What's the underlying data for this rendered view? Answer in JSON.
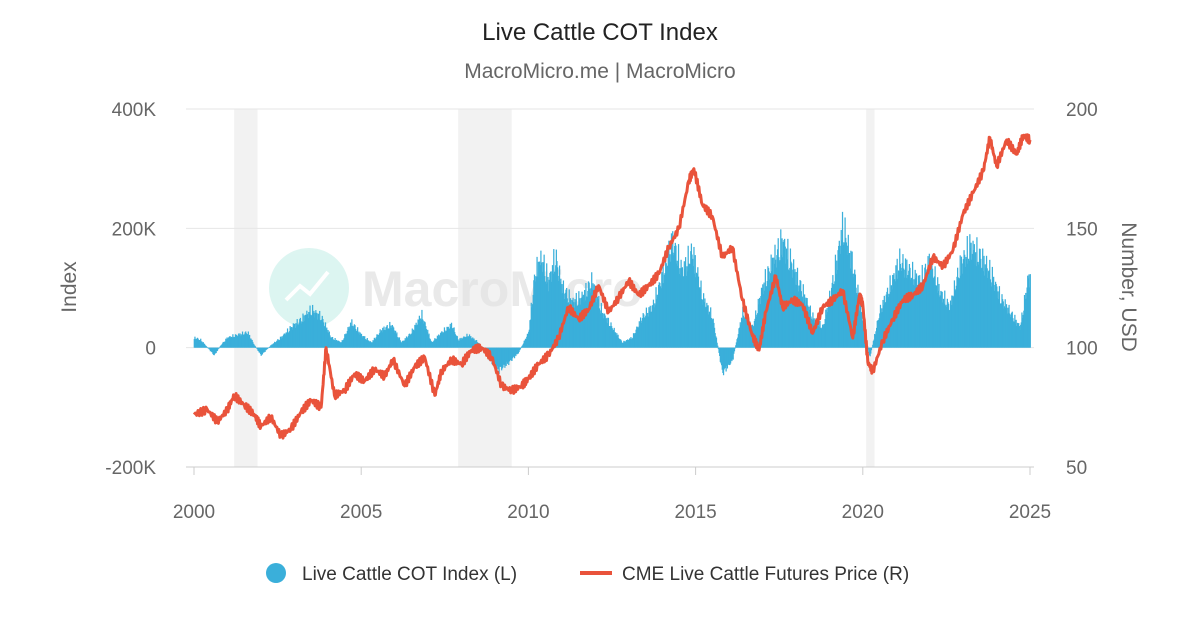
{
  "chart_data": {
    "type": "bar+line",
    "title": "Live Cattle COT Index",
    "subtitle": "MacroMicro.me | MacroMicro",
    "watermark": "MacroMicro",
    "y_left": {
      "label": "Index",
      "ticks": [
        "400K",
        "200K",
        "0",
        "-200K"
      ],
      "range": [
        -200000,
        400000
      ]
    },
    "y_right": {
      "label": "Number, USD",
      "ticks": [
        "200",
        "150",
        "100",
        "50"
      ],
      "range": [
        50,
        200
      ]
    },
    "x_axis": {
      "ticks": [
        "2000",
        "2005",
        "2010",
        "2015",
        "2020",
        "2025"
      ],
      "range": [
        2000.0,
        2025.0
      ]
    },
    "recession_shading": [
      [
        2001.2,
        2001.9
      ],
      [
        2007.9,
        2009.5
      ],
      [
        2020.1,
        2020.35
      ]
    ],
    "series": [
      {
        "name": "Live Cattle COT Index (L)",
        "type": "bar",
        "color": "#3aafda",
        "points": [
          [
            2000.0,
            20000
          ],
          [
            2000.2,
            15000
          ],
          [
            2000.4,
            0
          ],
          [
            2000.6,
            -15000
          ],
          [
            2000.8,
            5000
          ],
          [
            2001.0,
            20000
          ],
          [
            2001.3,
            25000
          ],
          [
            2001.6,
            30000
          ],
          [
            2001.8,
            5000
          ],
          [
            2002.0,
            -15000
          ],
          [
            2002.3,
            5000
          ],
          [
            2002.6,
            20000
          ],
          [
            2002.9,
            40000
          ],
          [
            2003.2,
            55000
          ],
          [
            2003.5,
            75000
          ],
          [
            2003.8,
            60000
          ],
          [
            2004.1,
            20000
          ],
          [
            2004.4,
            10000
          ],
          [
            2004.7,
            50000
          ],
          [
            2005.0,
            25000
          ],
          [
            2005.3,
            10000
          ],
          [
            2005.6,
            35000
          ],
          [
            2005.9,
            45000
          ],
          [
            2006.2,
            10000
          ],
          [
            2006.5,
            30000
          ],
          [
            2006.8,
            65000
          ],
          [
            2007.1,
            10000
          ],
          [
            2007.4,
            30000
          ],
          [
            2007.7,
            45000
          ],
          [
            2007.9,
            15000
          ],
          [
            2008.2,
            25000
          ],
          [
            2008.5,
            10000
          ],
          [
            2008.8,
            -20000
          ],
          [
            2009.1,
            -45000
          ],
          [
            2009.4,
            -30000
          ],
          [
            2009.7,
            -10000
          ],
          [
            2010.0,
            30000
          ],
          [
            2010.2,
            150000
          ],
          [
            2010.4,
            175000
          ],
          [
            2010.6,
            130000
          ],
          [
            2010.8,
            180000
          ],
          [
            2011.0,
            120000
          ],
          [
            2011.3,
            90000
          ],
          [
            2011.6,
            100000
          ],
          [
            2011.9,
            130000
          ],
          [
            2012.2,
            70000
          ],
          [
            2012.5,
            40000
          ],
          [
            2012.8,
            10000
          ],
          [
            2013.1,
            20000
          ],
          [
            2013.4,
            60000
          ],
          [
            2013.7,
            80000
          ],
          [
            2014.0,
            140000
          ],
          [
            2014.3,
            210000
          ],
          [
            2014.6,
            150000
          ],
          [
            2014.9,
            190000
          ],
          [
            2015.2,
            100000
          ],
          [
            2015.5,
            60000
          ],
          [
            2015.8,
            -50000
          ],
          [
            2016.1,
            -25000
          ],
          [
            2016.4,
            70000
          ],
          [
            2016.7,
            40000
          ],
          [
            2017.0,
            120000
          ],
          [
            2017.3,
            170000
          ],
          [
            2017.6,
            210000
          ],
          [
            2017.9,
            160000
          ],
          [
            2018.2,
            110000
          ],
          [
            2018.5,
            60000
          ],
          [
            2018.8,
            40000
          ],
          [
            2019.1,
            130000
          ],
          [
            2019.4,
            240000
          ],
          [
            2019.7,
            160000
          ],
          [
            2020.0,
            50000
          ],
          [
            2020.2,
            -20000
          ],
          [
            2020.5,
            70000
          ],
          [
            2020.8,
            120000
          ],
          [
            2021.1,
            170000
          ],
          [
            2021.4,
            150000
          ],
          [
            2021.7,
            130000
          ],
          [
            2022.0,
            170000
          ],
          [
            2022.3,
            110000
          ],
          [
            2022.6,
            80000
          ],
          [
            2022.9,
            160000
          ],
          [
            2023.2,
            200000
          ],
          [
            2023.5,
            180000
          ],
          [
            2023.8,
            150000
          ],
          [
            2024.1,
            100000
          ],
          [
            2024.4,
            70000
          ],
          [
            2024.7,
            40000
          ],
          [
            2024.95,
            140000
          ]
        ]
      },
      {
        "name": "CME Live Cattle Futures Price (R)",
        "type": "line",
        "color": "#e9533b",
        "points": [
          [
            2000.0,
            72
          ],
          [
            2000.4,
            74
          ],
          [
            2000.7,
            69
          ],
          [
            2001.0,
            74
          ],
          [
            2001.2,
            80
          ],
          [
            2001.5,
            76
          ],
          [
            2001.8,
            72
          ],
          [
            2002.0,
            67
          ],
          [
            2002.3,
            71
          ],
          [
            2002.6,
            63
          ],
          [
            2002.9,
            66
          ],
          [
            2003.2,
            73
          ],
          [
            2003.5,
            78
          ],
          [
            2003.8,
            75
          ],
          [
            2003.95,
            100
          ],
          [
            2004.2,
            80
          ],
          [
            2004.5,
            82
          ],
          [
            2004.8,
            89
          ],
          [
            2005.1,
            86
          ],
          [
            2005.4,
            91
          ],
          [
            2005.7,
            88
          ],
          [
            2005.95,
            95
          ],
          [
            2006.3,
            84
          ],
          [
            2006.6,
            92
          ],
          [
            2006.9,
            96
          ],
          [
            2007.2,
            80
          ],
          [
            2007.4,
            90
          ],
          [
            2007.7,
            95
          ],
          [
            2008.0,
            93
          ],
          [
            2008.3,
            99
          ],
          [
            2008.6,
            100
          ],
          [
            2008.9,
            96
          ],
          [
            2009.2,
            84
          ],
          [
            2009.5,
            82
          ],
          [
            2009.8,
            84
          ],
          [
            2010.0,
            87
          ],
          [
            2010.3,
            93
          ],
          [
            2010.6,
            97
          ],
          [
            2010.9,
            104
          ],
          [
            2011.2,
            117
          ],
          [
            2011.5,
            112
          ],
          [
            2011.8,
            116
          ],
          [
            2012.1,
            126
          ],
          [
            2012.4,
            115
          ],
          [
            2012.7,
            121
          ],
          [
            2013.0,
            128
          ],
          [
            2013.3,
            122
          ],
          [
            2013.6,
            126
          ],
          [
            2013.9,
            131
          ],
          [
            2014.2,
            142
          ],
          [
            2014.5,
            150
          ],
          [
            2014.8,
            170
          ],
          [
            2014.95,
            175
          ],
          [
            2015.2,
            160
          ],
          [
            2015.5,
            155
          ],
          [
            2015.8,
            138
          ],
          [
            2016.1,
            142
          ],
          [
            2016.4,
            120
          ],
          [
            2016.7,
            105
          ],
          [
            2016.9,
            99
          ],
          [
            2017.1,
            115
          ],
          [
            2017.4,
            130
          ],
          [
            2017.6,
            117
          ],
          [
            2017.9,
            120
          ],
          [
            2018.2,
            118
          ],
          [
            2018.5,
            106
          ],
          [
            2018.8,
            117
          ],
          [
            2019.1,
            120
          ],
          [
            2019.4,
            124
          ],
          [
            2019.7,
            104
          ],
          [
            2019.9,
            122
          ],
          [
            2020.0,
            118
          ],
          [
            2020.15,
            94
          ],
          [
            2020.3,
            90
          ],
          [
            2020.6,
            103
          ],
          [
            2020.9,
            112
          ],
          [
            2021.2,
            120
          ],
          [
            2021.5,
            122
          ],
          [
            2021.8,
            126
          ],
          [
            2022.1,
            138
          ],
          [
            2022.4,
            134
          ],
          [
            2022.7,
            141
          ],
          [
            2023.0,
            156
          ],
          [
            2023.3,
            165
          ],
          [
            2023.6,
            174
          ],
          [
            2023.8,
            188
          ],
          [
            2024.0,
            176
          ],
          [
            2024.3,
            187
          ],
          [
            2024.6,
            181
          ],
          [
            2024.8,
            189
          ],
          [
            2025.0,
            187
          ]
        ]
      }
    ]
  }
}
